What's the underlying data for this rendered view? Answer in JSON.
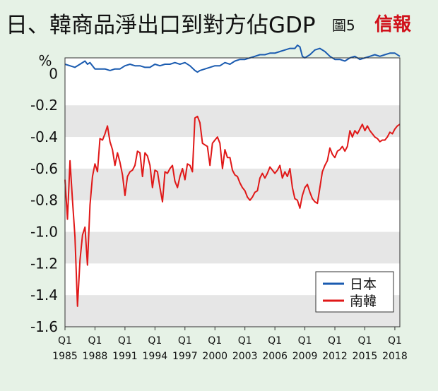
{
  "header": {
    "title": "日、韓商品淨出口到對方佔GDP",
    "figure_label": "圖5",
    "publisher_logo": "信報"
  },
  "colors": {
    "japan": "#1a5bb0",
    "korea": "#e01818",
    "band": "#e6e6e6",
    "background": "#e6f2e6"
  },
  "chart_data": {
    "type": "line",
    "title": "日、韓商品淨出口到對方佔GDP",
    "ylabel": "%",
    "xlabel": "",
    "ylim": [
      -1.6,
      0.1
    ],
    "yticks": [
      "0",
      "-0.2",
      "-0.4",
      "-0.6",
      "-0.8",
      "-1.0",
      "-1.2",
      "-1.4",
      "-1.6"
    ],
    "ytick_values": [
      0,
      -0.2,
      -0.4,
      -0.6,
      -0.8,
      -1.0,
      -1.2,
      -1.4,
      -1.6
    ],
    "xrange": [
      1985.0,
      2018.5
    ],
    "xticks": [
      {
        "q": "Q1",
        "year": "1985",
        "x": 1985
      },
      {
        "q": "Q1",
        "year": "1988",
        "x": 1988
      },
      {
        "q": "Q1",
        "year": "1991",
        "x": 1991
      },
      {
        "q": "Q1",
        "year": "1994",
        "x": 1994
      },
      {
        "q": "Q1",
        "year": "1997",
        "x": 1997
      },
      {
        "q": "Q1",
        "year": "2000",
        "x": 2000
      },
      {
        "q": "Q1",
        "year": "2003",
        "x": 2003
      },
      {
        "q": "Q1",
        "year": "2006",
        "x": 2006
      },
      {
        "q": "Q1",
        "year": "2009",
        "x": 2009
      },
      {
        "q": "Q1",
        "year": "2012",
        "x": 2012
      },
      {
        "q": "Q1",
        "year": "2015",
        "x": 2015
      },
      {
        "q": "Q1",
        "year": "2018",
        "x": 2018
      }
    ],
    "legend_position": "bottom-right",
    "series": [
      {
        "name": "日本",
        "color": "#1a5bb0",
        "x": [
          1985.0,
          1985.5,
          1986.0,
          1986.5,
          1987.0,
          1987.25,
          1987.5,
          1988.0,
          1988.5,
          1989.0,
          1989.5,
          1990.0,
          1990.5,
          1991.0,
          1991.5,
          1992.0,
          1992.5,
          1993.0,
          1993.5,
          1994.0,
          1994.5,
          1995.0,
          1995.5,
          1996.0,
          1996.5,
          1997.0,
          1997.5,
          1998.0,
          1998.25,
          1998.5,
          1999.0,
          1999.5,
          2000.0,
          2000.5,
          2001.0,
          2001.5,
          2002.0,
          2002.5,
          2003.0,
          2003.5,
          2004.0,
          2004.5,
          2005.0,
          2005.5,
          2006.0,
          2006.5,
          2007.0,
          2007.5,
          2008.0,
          2008.25,
          2008.5,
          2008.75,
          2009.0,
          2009.5,
          2010.0,
          2010.5,
          2011.0,
          2011.5,
          2012.0,
          2012.5,
          2013.0,
          2013.5,
          2014.0,
          2014.5,
          2015.0,
          2015.5,
          2016.0,
          2016.5,
          2017.0,
          2017.5,
          2018.0,
          2018.5
        ],
        "values": [
          0.06,
          0.05,
          0.04,
          0.06,
          0.08,
          0.06,
          0.07,
          0.03,
          0.03,
          0.03,
          0.02,
          0.03,
          0.03,
          0.05,
          0.06,
          0.05,
          0.05,
          0.04,
          0.04,
          0.06,
          0.05,
          0.06,
          0.06,
          0.07,
          0.06,
          0.07,
          0.05,
          0.02,
          0.01,
          0.02,
          0.03,
          0.04,
          0.05,
          0.05,
          0.07,
          0.06,
          0.08,
          0.09,
          0.09,
          0.1,
          0.11,
          0.12,
          0.12,
          0.13,
          0.13,
          0.14,
          0.15,
          0.16,
          0.16,
          0.18,
          0.17,
          0.11,
          0.1,
          0.12,
          0.15,
          0.16,
          0.14,
          0.11,
          0.09,
          0.09,
          0.08,
          0.1,
          0.11,
          0.09,
          0.1,
          0.11,
          0.12,
          0.11,
          0.12,
          0.13,
          0.13,
          0.11
        ]
      },
      {
        "name": "南韓",
        "color": "#e01818",
        "x": [
          1985.0,
          1985.25,
          1985.5,
          1985.75,
          1986.0,
          1986.25,
          1986.5,
          1986.75,
          1987.0,
          1987.25,
          1987.5,
          1987.75,
          1988.0,
          1988.25,
          1988.5,
          1988.75,
          1989.0,
          1989.25,
          1989.5,
          1989.75,
          1990.0,
          1990.25,
          1990.5,
          1990.75,
          1991.0,
          1991.25,
          1991.5,
          1991.75,
          1992.0,
          1992.25,
          1992.5,
          1992.75,
          1993.0,
          1993.25,
          1993.5,
          1993.75,
          1994.0,
          1994.25,
          1994.5,
          1994.75,
          1995.0,
          1995.25,
          1995.5,
          1995.75,
          1996.0,
          1996.25,
          1996.5,
          1996.75,
          1997.0,
          1997.25,
          1997.5,
          1997.75,
          1998.0,
          1998.25,
          1998.5,
          1998.75,
          1999.0,
          1999.25,
          1999.5,
          1999.75,
          2000.0,
          2000.25,
          2000.5,
          2000.75,
          2001.0,
          2001.25,
          2001.5,
          2001.75,
          2002.0,
          2002.25,
          2002.5,
          2002.75,
          2003.0,
          2003.25,
          2003.5,
          2003.75,
          2004.0,
          2004.25,
          2004.5,
          2004.75,
          2005.0,
          2005.25,
          2005.5,
          2005.75,
          2006.0,
          2006.25,
          2006.5,
          2006.75,
          2007.0,
          2007.25,
          2007.5,
          2007.75,
          2008.0,
          2008.25,
          2008.5,
          2008.75,
          2009.0,
          2009.25,
          2009.5,
          2009.75,
          2010.0,
          2010.25,
          2010.5,
          2010.75,
          2011.0,
          2011.25,
          2011.5,
          2011.75,
          2012.0,
          2012.25,
          2012.5,
          2012.75,
          2013.0,
          2013.25,
          2013.5,
          2013.75,
          2014.0,
          2014.25,
          2014.5,
          2014.75,
          2015.0,
          2015.25,
          2015.5,
          2015.75,
          2016.0,
          2016.25,
          2016.5,
          2016.75,
          2017.0,
          2017.25,
          2017.5,
          2017.75,
          2018.0,
          2018.25,
          2018.5
        ],
        "values": [
          -0.67,
          -0.92,
          -0.55,
          -0.8,
          -1.03,
          -1.47,
          -1.18,
          -1.02,
          -0.97,
          -1.21,
          -0.83,
          -0.65,
          -0.57,
          -0.62,
          -0.41,
          -0.42,
          -0.38,
          -0.33,
          -0.43,
          -0.48,
          -0.58,
          -0.5,
          -0.56,
          -0.64,
          -0.77,
          -0.65,
          -0.62,
          -0.61,
          -0.58,
          -0.49,
          -0.5,
          -0.65,
          -0.5,
          -0.52,
          -0.58,
          -0.72,
          -0.61,
          -0.62,
          -0.72,
          -0.81,
          -0.62,
          -0.63,
          -0.6,
          -0.58,
          -0.68,
          -0.72,
          -0.65,
          -0.6,
          -0.67,
          -0.57,
          -0.58,
          -0.62,
          -0.28,
          -0.27,
          -0.31,
          -0.44,
          -0.45,
          -0.46,
          -0.58,
          -0.44,
          -0.42,
          -0.4,
          -0.44,
          -0.6,
          -0.48,
          -0.53,
          -0.53,
          -0.61,
          -0.64,
          -0.65,
          -0.69,
          -0.72,
          -0.74,
          -0.78,
          -0.8,
          -0.78,
          -0.75,
          -0.74,
          -0.66,
          -0.63,
          -0.66,
          -0.63,
          -0.59,
          -0.61,
          -0.63,
          -0.61,
          -0.58,
          -0.66,
          -0.62,
          -0.65,
          -0.6,
          -0.72,
          -0.79,
          -0.8,
          -0.85,
          -0.77,
          -0.72,
          -0.7,
          -0.75,
          -0.79,
          -0.81,
          -0.82,
          -0.72,
          -0.62,
          -0.58,
          -0.55,
          -0.47,
          -0.51,
          -0.53,
          -0.49,
          -0.48,
          -0.46,
          -0.49,
          -0.46,
          -0.36,
          -0.4,
          -0.36,
          -0.38,
          -0.35,
          -0.32,
          -0.36,
          -0.33,
          -0.36,
          -0.38,
          -0.4,
          -0.41,
          -0.43,
          -0.42,
          -0.42,
          -0.4,
          -0.37,
          -0.38,
          -0.35,
          -0.33,
          -0.32
        ]
      }
    ]
  }
}
